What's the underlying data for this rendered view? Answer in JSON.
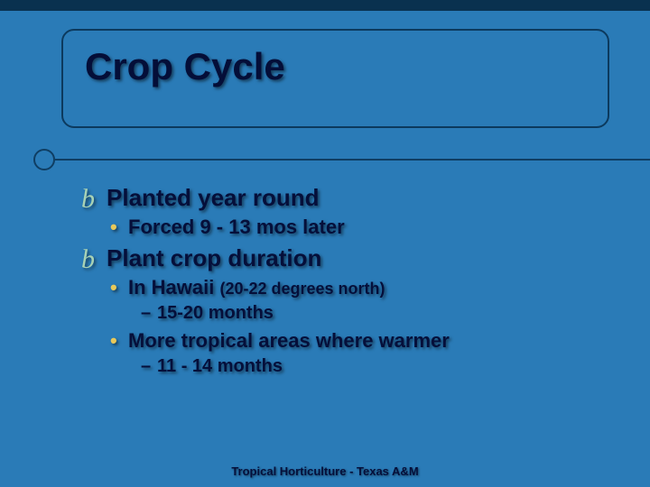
{
  "colors": {
    "background": "#2a7bb7",
    "top_border": "#09314f",
    "title_box_border": "#0c3a5e",
    "title_box_bg": "#2a7bb7",
    "title_text": "#040e38",
    "rule": "#0f3e63",
    "rule_fill": "#2a7bb7",
    "body_text": "#050f3a",
    "bullet_marker": "#a8d2b5",
    "dot_marker": "#e8c95a",
    "footer_text": "#050f3a"
  },
  "title": "Crop Cycle",
  "items": [
    {
      "level": 1,
      "text": "Planted year round"
    },
    {
      "level": 2,
      "text": "Forced 9 - 13 mos later"
    },
    {
      "level": 1,
      "text": "Plant crop duration"
    },
    {
      "level": 2,
      "text": "In Hawaii",
      "paren": "(20-22 degrees north)"
    },
    {
      "level": 3,
      "text": "15-20 months"
    },
    {
      "level": 2,
      "text": "More tropical areas where warmer"
    },
    {
      "level": 3,
      "text": "11 - 14 months"
    }
  ],
  "footer": "Tropical Horticulture - Texas A&M"
}
